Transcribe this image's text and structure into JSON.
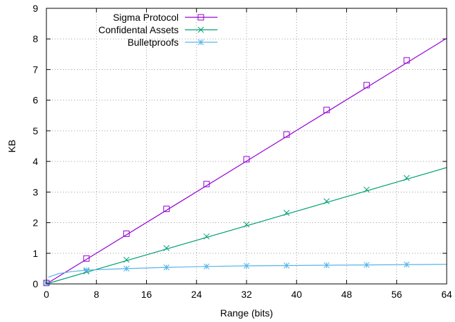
{
  "chart_data": {
    "type": "line",
    "title": "",
    "xlabel": "Range (bits)",
    "ylabel": "KB",
    "xlim": [
      0,
      64
    ],
    "ylim": [
      0,
      9
    ],
    "xticks": [
      0,
      8,
      16,
      24,
      32,
      40,
      48,
      56,
      64
    ],
    "yticks": [
      0,
      1,
      2,
      3,
      4,
      5,
      6,
      7,
      8,
      9
    ],
    "grid": true,
    "legend_position": "top-left",
    "series": [
      {
        "name": "Sigma Protocol",
        "color": "#9400d3",
        "marker": "square",
        "line": [
          [
            0,
            0.0
          ],
          [
            64,
            8.02
          ]
        ],
        "points": [
          [
            0,
            0.03
          ],
          [
            6.4,
            0.83
          ],
          [
            12.8,
            1.64
          ],
          [
            19.2,
            2.45
          ],
          [
            25.6,
            3.26
          ],
          [
            32,
            4.07
          ],
          [
            38.4,
            4.88
          ],
          [
            44.8,
            5.68
          ],
          [
            51.2,
            6.49
          ],
          [
            57.6,
            7.3
          ]
        ]
      },
      {
        "name": "Confidental Assets",
        "color": "#009e73",
        "marker": "x",
        "line": [
          [
            0,
            0.0
          ],
          [
            64,
            3.8
          ]
        ],
        "points": [
          [
            0,
            0.03
          ],
          [
            6.4,
            0.41
          ],
          [
            12.8,
            0.79
          ],
          [
            19.2,
            1.17
          ],
          [
            25.6,
            1.55
          ],
          [
            32,
            1.94
          ],
          [
            38.4,
            2.32
          ],
          [
            44.8,
            2.7
          ],
          [
            51.2,
            3.08
          ],
          [
            57.6,
            3.46
          ]
        ]
      },
      {
        "name": "Bulletproofs",
        "color": "#56b4e9",
        "marker": "star",
        "line": [
          [
            0.3,
            0.22
          ],
          [
            2,
            0.34
          ],
          [
            4,
            0.4
          ],
          [
            6.4,
            0.45
          ],
          [
            12.8,
            0.5
          ],
          [
            19.2,
            0.54
          ],
          [
            25.6,
            0.57
          ],
          [
            32,
            0.59
          ],
          [
            38.4,
            0.6
          ],
          [
            44.8,
            0.61
          ],
          [
            51.2,
            0.62
          ],
          [
            57.6,
            0.63
          ],
          [
            64,
            0.64
          ]
        ],
        "points": [
          [
            0,
            0.03
          ],
          [
            6.4,
            0.45
          ],
          [
            12.8,
            0.5
          ],
          [
            19.2,
            0.54
          ],
          [
            25.6,
            0.57
          ],
          [
            32,
            0.59
          ],
          [
            38.4,
            0.6
          ],
          [
            44.8,
            0.61
          ],
          [
            51.2,
            0.62
          ],
          [
            57.6,
            0.63
          ]
        ]
      }
    ]
  }
}
